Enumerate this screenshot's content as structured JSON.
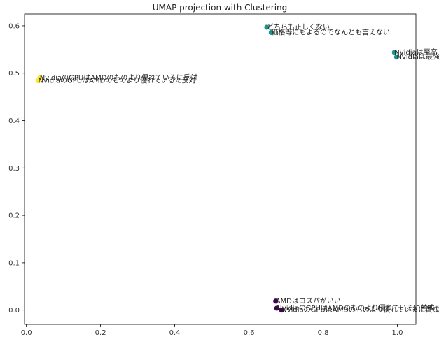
{
  "chart_data": {
    "type": "scatter",
    "title": "UMAP projection with Clustering",
    "xlabel": "",
    "ylabel": "",
    "xlim": [
      -0.005,
      1.05
    ],
    "ylim": [
      -0.03,
      0.625
    ],
    "x_ticks": [
      0.0,
      0.2,
      0.4,
      0.6,
      0.8,
      1.0
    ],
    "y_ticks": [
      0.0,
      0.1,
      0.2,
      0.3,
      0.4,
      0.5,
      0.6
    ],
    "grid": false,
    "legend": "none",
    "cluster_colors": [
      "#440154",
      "#21918c",
      "#fde725"
    ],
    "points": [
      {
        "label": "どちらも正しくない",
        "x": 0.648,
        "y": 0.597,
        "cluster": 1
      },
      {
        "label": "価格等にもよるのでなんとも言えない",
        "x": 0.66,
        "y": 0.586,
        "cluster": 1
      },
      {
        "label": "Nvidiaは至高",
        "x": 0.992,
        "y": 0.544,
        "cluster": 1
      },
      {
        "label": "Nvidiaは最強",
        "x": 0.998,
        "y": 0.534,
        "cluster": 1
      },
      {
        "label": "NvidiaのGPUはAMDのものより優れているに反対",
        "x": 0.036,
        "y": 0.49,
        "cluster": 2
      },
      {
        "label": "NvidiaのGPUはAMDのものより優れているに反対",
        "x": 0.032,
        "y": 0.484,
        "cluster": 2
      },
      {
        "label": "AMDはコスパがいい",
        "x": 0.672,
        "y": 0.019,
        "cluster": 0
      },
      {
        "label": "NvidiaのGPUはAMDのものより優れているに賛成",
        "x": 0.675,
        "y": 0.004,
        "cluster": 0
      },
      {
        "label": "NvidiaのGPUはAMDのものより優れているに賛成",
        "x": 0.688,
        "y": 0.0,
        "cluster": 0
      }
    ]
  }
}
